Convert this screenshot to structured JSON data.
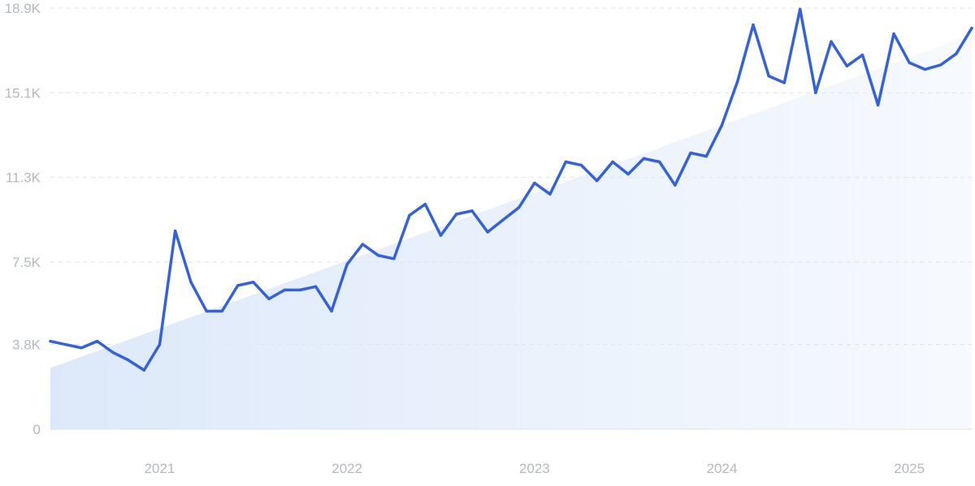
{
  "chart_data": {
    "type": "line",
    "title": "",
    "xlabel": "",
    "ylabel": "",
    "y_ticks": [
      {
        "value": 0,
        "label": "0"
      },
      {
        "value": 3800,
        "label": "3.8K"
      },
      {
        "value": 7500,
        "label": "7.5K"
      },
      {
        "value": 11300,
        "label": "11.3K"
      },
      {
        "value": 15100,
        "label": "15.1K"
      },
      {
        "value": 18900,
        "label": "18.9K"
      }
    ],
    "x_ticks": [
      {
        "value": 2021,
        "label": "2021"
      },
      {
        "value": 2022,
        "label": "2022"
      },
      {
        "value": 2023,
        "label": "2023"
      },
      {
        "value": 2024,
        "label": "2024"
      },
      {
        "value": 2025,
        "label": "2025"
      }
    ],
    "xlim": [
      2020.417,
      2025.333
    ],
    "ylim": [
      0,
      18900
    ],
    "grid": "horizontal dashed",
    "colors": {
      "line": "#3461dd",
      "trend_fill": "#dde9fa",
      "grid": "#dde3ea",
      "axis": "#dce2ea",
      "tick_text": "#b3b9c4"
    },
    "trend_area": {
      "start": [
        2020.417,
        2750
      ],
      "end": [
        2025.333,
        17700
      ]
    },
    "series": [
      {
        "x": [
          2020.417,
          2020.5,
          2020.583,
          2020.667,
          2020.75,
          2020.833,
          2020.917,
          2021.0,
          2021.083,
          2021.167,
          2021.25,
          2021.333,
          2021.417,
          2021.5,
          2021.583,
          2021.667,
          2021.75,
          2021.833,
          2021.917,
          2022.0,
          2022.083,
          2022.167,
          2022.25,
          2022.333,
          2022.417,
          2022.5,
          2022.583,
          2022.667,
          2022.75,
          2022.833,
          2022.917,
          2023.0,
          2023.083,
          2023.167,
          2023.25,
          2023.333,
          2023.417,
          2023.5,
          2023.583,
          2023.667,
          2023.75,
          2023.833,
          2023.917,
          2024.0,
          2024.083,
          2024.167,
          2024.25,
          2024.333,
          2024.417,
          2024.5,
          2024.583,
          2024.667,
          2024.75,
          2024.833,
          2024.917,
          2025.0,
          2025.083,
          2025.167,
          2025.25,
          2025.333
        ],
        "values": [
          3950,
          3800,
          3650,
          3950,
          3450,
          3100,
          2650,
          3800,
          8900,
          6600,
          5300,
          5300,
          6450,
          6600,
          5850,
          6250,
          6250,
          6400,
          5300,
          7400,
          8300,
          7800,
          7650,
          9600,
          10100,
          8700,
          9650,
          9800,
          8850,
          9400,
          9950,
          11050,
          10550,
          12000,
          11850,
          11150,
          12000,
          11450,
          12150,
          12000,
          10950,
          12400,
          12250,
          13650,
          15600,
          18150,
          15850,
          15550,
          18850,
          15100,
          17400,
          16300,
          16800,
          14550,
          17750,
          16450,
          16150,
          16350,
          16850,
          18000
        ]
      }
    ]
  }
}
